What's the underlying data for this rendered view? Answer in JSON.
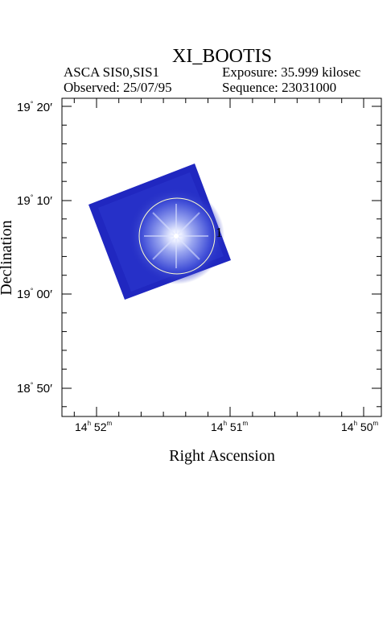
{
  "title": "XI_BOOTIS",
  "header": {
    "instrument": "ASCA SIS0,SIS1",
    "exposure": "Exposure: 35.999 kilosec",
    "observed": "Observed: 25/07/95",
    "sequence": "Sequence: 23031000"
  },
  "axes": {
    "xlabel": "Right Ascension",
    "ylabel": "Declination",
    "x_ticks": [
      {
        "h": "14",
        "m": "52"
      },
      {
        "h": "14",
        "m": "51"
      },
      {
        "h": "14",
        "m": "50"
      }
    ],
    "y_ticks": [
      {
        "deg": "19",
        "min": "20"
      },
      {
        "deg": "19",
        "min": "10"
      },
      {
        "deg": "19",
        "min": "00"
      },
      {
        "deg": "18",
        "min": "50"
      }
    ]
  },
  "source": {
    "label": "1"
  },
  "colors": {
    "image_dark": "#1a1fb8",
    "image_mid": "#3040d8",
    "image_bright": "#ffffff",
    "circle": "#ffffcc"
  }
}
